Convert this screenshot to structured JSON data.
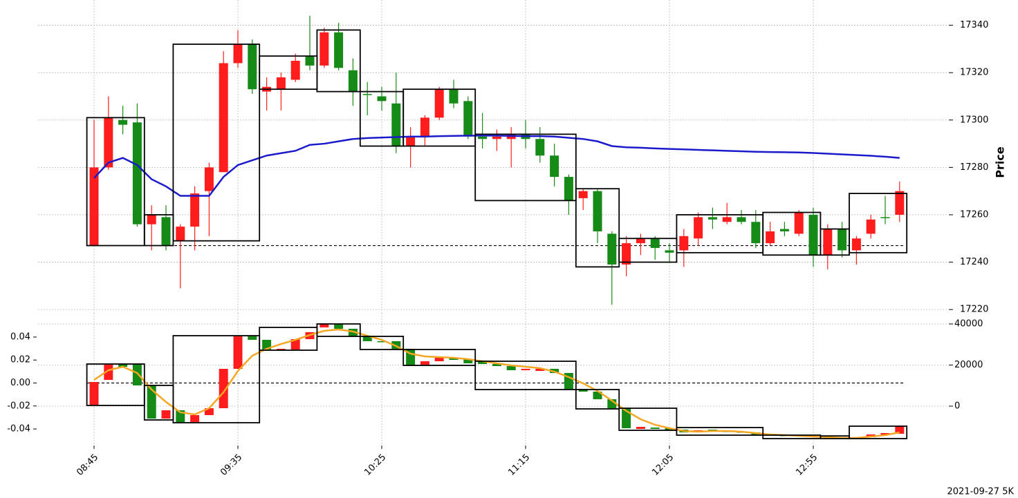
{
  "chart_data": [
    {
      "type": "candlestick",
      "ylabel": "Price",
      "up_color": "#ff1c1c",
      "down_color": "#168a16",
      "grid": true,
      "ylim": [
        17218,
        17346
      ],
      "yticks": [
        17220,
        17240,
        17260,
        17280,
        17300,
        17320,
        17340
      ],
      "open": [
        17247,
        17280,
        17300,
        17299,
        17256,
        17259,
        17249,
        17255,
        17270,
        17278,
        17324,
        17332,
        17312,
        17313,
        17317,
        17327,
        17323,
        17337,
        17321,
        17311,
        17310,
        17307,
        17289,
        17293,
        17301,
        17313,
        17308,
        17293,
        17292,
        17292,
        17294,
        17292,
        17285,
        17276,
        17267,
        17270,
        17252,
        17239,
        17248,
        17250,
        17245,
        17245,
        17250,
        17259,
        17257,
        17259,
        17257,
        17248,
        17254,
        17252,
        17260,
        17243,
        17254,
        17245,
        17252,
        17259,
        17260
      ],
      "high": [
        17300,
        17310,
        17306,
        17307,
        17264,
        17264,
        17256,
        17272,
        17282,
        17329,
        17338,
        17334,
        17318,
        17320,
        17328,
        17344,
        17339,
        17341,
        17326,
        17316,
        17314,
        17320,
        17297,
        17302,
        17314,
        17317,
        17310,
        17303,
        17296,
        17297,
        17300,
        17297,
        17290,
        17277,
        17271,
        17271,
        17253,
        17251,
        17252,
        17251,
        17248,
        17254,
        17261,
        17263,
        17265,
        17262,
        17262,
        17257,
        17257,
        17262,
        17263,
        17256,
        17257,
        17251,
        17260,
        17268,
        17274
      ],
      "low": [
        17247,
        17279,
        17294,
        17255,
        17245,
        17245,
        17229,
        17245,
        17251,
        17278,
        17322,
        17311,
        17304,
        17304,
        17316,
        17321,
        17322,
        17321,
        17306,
        17302,
        17304,
        17286,
        17280,
        17289,
        17300,
        17305,
        17292,
        17288,
        17287,
        17280,
        17288,
        17282,
        17272,
        17260,
        17262,
        17248,
        17222,
        17234,
        17243,
        17241,
        17240,
        17238,
        17247,
        17254,
        17256,
        17256,
        17246,
        17247,
        17251,
        17251,
        17238,
        17237,
        17242,
        17239,
        17250,
        17256,
        17257
      ],
      "close": [
        17280,
        17301,
        17298,
        17256,
        17260,
        17247,
        17255,
        17269,
        17280,
        17324,
        17332,
        17313,
        17314,
        17318,
        17325,
        17323,
        17337,
        17322,
        17312,
        17311,
        17308,
        17289,
        17293,
        17301,
        17313,
        17307,
        17293,
        17292,
        17293,
        17294,
        17292,
        17285,
        17276,
        17266,
        17270,
        17253,
        17239,
        17248,
        17250,
        17246,
        17244,
        17251,
        17259,
        17258,
        17259,
        17257,
        17248,
        17253,
        17253,
        17261,
        17243,
        17254,
        17245,
        17250,
        17258,
        17259,
        17270
      ],
      "line": {
        "color": "#1a1acc",
        "values": [
          17275.5,
          17282,
          17284,
          17281,
          17275,
          17272,
          17268,
          17268,
          17268,
          17276,
          17281,
          17283,
          17285,
          17286,
          17287,
          17289.5,
          17290,
          17291,
          17292,
          17292.4,
          17292.6,
          17292.8,
          17293,
          17293,
          17293.2,
          17293.3,
          17293.4,
          17293.4,
          17293.4,
          17293.3,
          17293.2,
          17293.2,
          17293,
          17292.5,
          17292,
          17291,
          17289,
          17288.5,
          17288.3,
          17288,
          17287.8,
          17287.6,
          17287.4,
          17287.2,
          17287,
          17286.8,
          17286.6,
          17286.5,
          17286.4,
          17286.3,
          17286.1,
          17285.8,
          17285.5,
          17285.2,
          17284.9,
          17284.5,
          17284
        ]
      },
      "reference_line": 17247,
      "boxes": [
        {
          "first": 0,
          "last": 3,
          "high": 17301,
          "low": 17247
        },
        {
          "first": 4,
          "last": 5,
          "high": 17260,
          "low": 17247
        },
        {
          "first": 6,
          "last": 11,
          "high": 17332,
          "low": 17249
        },
        {
          "first": 12,
          "last": 15,
          "high": 17327,
          "low": 17313
        },
        {
          "first": 16,
          "last": 18,
          "high": 17338,
          "low": 17312
        },
        {
          "first": 19,
          "last": 21,
          "high": 17312,
          "low": 17289
        },
        {
          "first": 22,
          "last": 26,
          "high": 17313,
          "low": 17289
        },
        {
          "first": 27,
          "last": 33,
          "high": 17294,
          "low": 17266
        },
        {
          "first": 34,
          "last": 36,
          "high": 17271,
          "low": 17238
        },
        {
          "first": 37,
          "last": 40,
          "high": 17250,
          "low": 17240
        },
        {
          "first": 41,
          "last": 46,
          "high": 17260,
          "low": 17244
        },
        {
          "first": 47,
          "last": 50,
          "high": 17261,
          "low": 17243
        },
        {
          "first": 51,
          "last": 52,
          "high": 17254,
          "low": 17243
        },
        {
          "first": 53,
          "last": 56,
          "high": 17269,
          "low": 17244
        }
      ]
    },
    {
      "type": "candlestick",
      "up_color": "#ff1c1c",
      "down_color": "#168a16",
      "grid": true,
      "axis": "y2",
      "categories": [
        "08:45",
        null,
        null,
        null,
        null,
        null,
        null,
        null,
        null,
        null,
        "09:35",
        null,
        null,
        null,
        null,
        null,
        null,
        null,
        null,
        null,
        "10:25",
        null,
        null,
        null,
        null,
        null,
        null,
        null,
        null,
        null,
        "11:15",
        null,
        null,
        null,
        null,
        null,
        null,
        null,
        null,
        null,
        "12:05",
        null,
        null,
        null,
        null,
        null,
        null,
        null,
        null,
        null,
        "12:55",
        null,
        null,
        null,
        null,
        null,
        null
      ],
      "ylim": [
        -0.0544,
        0.0514
      ],
      "yticks": [
        -0.04,
        -0.02,
        {
          "value": 0,
          "label": "0.00"
        },
        0.02,
        0.04
      ],
      "y2lim": [
        -19160,
        40000
      ],
      "y2ticks": [
        0,
        20000,
        40000
      ],
      "open": [
        670,
        12770,
        20500,
        20500,
        10080,
        -6050,
        -2020,
        -7730,
        -4370,
        -1010,
        18150,
        33950,
        32270,
        27200,
        27560,
        32600,
        38300,
        40000,
        37650,
        33950,
        31600,
        31600,
        27900,
        20170,
        21850,
        23530,
        22850,
        21850,
        20500,
        19490,
        17480,
        17140,
        18150,
        16130,
        8400,
        7060,
        3360,
        -1010,
        -11090,
        -10420,
        -10750,
        -11420,
        -12770,
        -11420,
        -12100,
        -12440,
        -12770,
        -13440,
        -14120,
        -14120,
        -14450,
        -14790,
        -15120,
        -15120,
        -15120,
        -14120,
        -13440
      ],
      "close": [
        11760,
        20170,
        19160,
        10080,
        -6050,
        -2020,
        -7730,
        -4370,
        -1010,
        18150,
        33950,
        32270,
        27560,
        27900,
        32600,
        36000,
        40000,
        37650,
        33950,
        31600,
        31300,
        27900,
        19830,
        21850,
        23530,
        22520,
        20840,
        20500,
        19490,
        17480,
        18150,
        18150,
        16130,
        8400,
        7060,
        3360,
        -1010,
        -10750,
        -10080,
        -11090,
        -11760,
        -12770,
        -11760,
        -12100,
        -12440,
        -12770,
        -13780,
        -14120,
        -14450,
        -14450,
        -14790,
        -15120,
        -15460,
        -15460,
        -13780,
        -13110,
        -9750
      ],
      "line": {
        "color": "#f5a623",
        "values": [
          12770,
          17480,
          19160,
          16130,
          8070,
          2020,
          -3020,
          -4030,
          -1010,
          6720,
          17140,
          24540,
          27900,
          30250,
          32270,
          34620,
          36630,
          37310,
          36300,
          34280,
          32270,
          29240,
          25540,
          24200,
          23860,
          23530,
          22850,
          21850,
          20840,
          19830,
          19160,
          18490,
          16800,
          14120,
          11090,
          7390,
          2690,
          -2350,
          -6390,
          -9070,
          -10750,
          -12100,
          -12440,
          -12100,
          -12100,
          -12440,
          -13110,
          -13780,
          -14120,
          -14450,
          -14790,
          -15120,
          -15460,
          -15460,
          -14790,
          -14120,
          -12770
        ]
      },
      "reference_line": 0,
      "boxes": [
        {
          "first": 0,
          "last": 3,
          "high": 20500,
          "low": 340
        },
        {
          "first": 4,
          "last": 5,
          "high": 10080,
          "low": -6720
        },
        {
          "first": 6,
          "last": 11,
          "high": 34280,
          "low": -8070
        },
        {
          "first": 12,
          "last": 15,
          "high": 38310,
          "low": 27220
        },
        {
          "first": 16,
          "last": 18,
          "high": 40000,
          "low": 33950
        },
        {
          "first": 19,
          "last": 21,
          "high": 33950,
          "low": 27560
        },
        {
          "first": 22,
          "last": 26,
          "high": 27560,
          "low": 19830
        },
        {
          "first": 27,
          "last": 33,
          "high": 21850,
          "low": 8070
        },
        {
          "first": 34,
          "last": 36,
          "high": 8070,
          "low": -1340
        },
        {
          "first": 37,
          "last": 40,
          "high": -1010,
          "low": -11760
        },
        {
          "first": 41,
          "last": 46,
          "high": -10420,
          "low": -14120
        },
        {
          "first": 47,
          "last": 50,
          "high": -14120,
          "low": -15800
        },
        {
          "first": 51,
          "last": 52,
          "high": -14500,
          "low": -15800
        },
        {
          "first": 53,
          "last": 56,
          "high": -9750,
          "low": -15800
        }
      ]
    }
  ],
  "footnote": "2021-09-27 5K"
}
